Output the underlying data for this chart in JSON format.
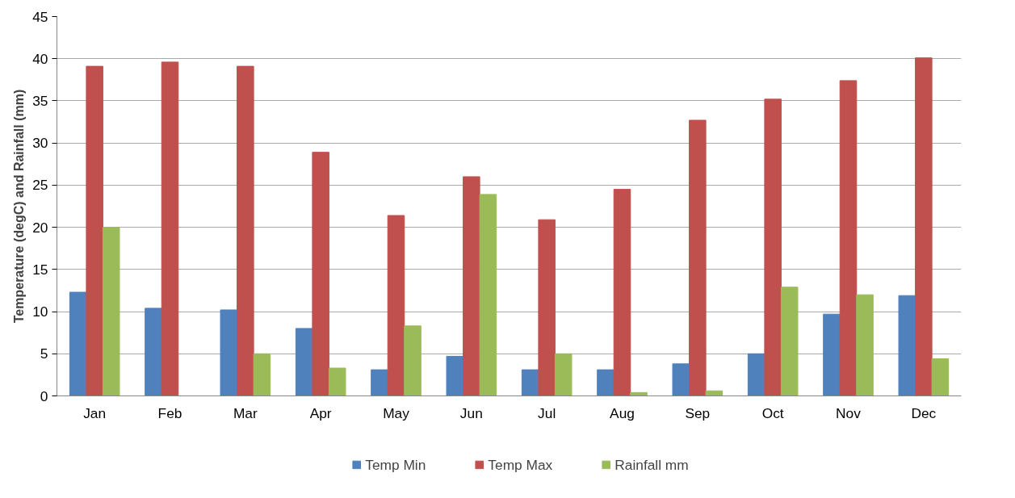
{
  "chart_data": {
    "type": "bar",
    "ylabel": "Temperature (degC) and Rainfall (mm)",
    "categories": [
      "Jan",
      "Feb",
      "Mar",
      "Apr",
      "May",
      "Jun",
      "Jul",
      "Aug",
      "Sep",
      "Oct",
      "Nov",
      "Dec"
    ],
    "series": [
      {
        "name": "Temp Min",
        "color": "#4f81bd",
        "values": [
          12.3,
          10.4,
          10.2,
          8.0,
          3.1,
          4.7,
          3.1,
          3.1,
          3.8,
          5.0,
          9.7,
          11.9
        ]
      },
      {
        "name": "Temp Max",
        "color": "#c0504d",
        "values": [
          39.1,
          39.6,
          39.1,
          28.9,
          21.4,
          26.0,
          20.9,
          24.5,
          32.7,
          35.2,
          37.4,
          40.1
        ]
      },
      {
        "name": "Rainfall mm",
        "color": "#9bbb59",
        "values": [
          20.0,
          0,
          5.0,
          3.3,
          8.3,
          23.9,
          5.0,
          0.4,
          0.6,
          12.9,
          12.0,
          4.4
        ]
      }
    ],
    "ylim": [
      0,
      45
    ],
    "yticks": [
      0,
      5,
      10,
      15,
      20,
      25,
      30,
      35,
      40,
      45
    ],
    "grid": "y",
    "legend": "bottom"
  }
}
